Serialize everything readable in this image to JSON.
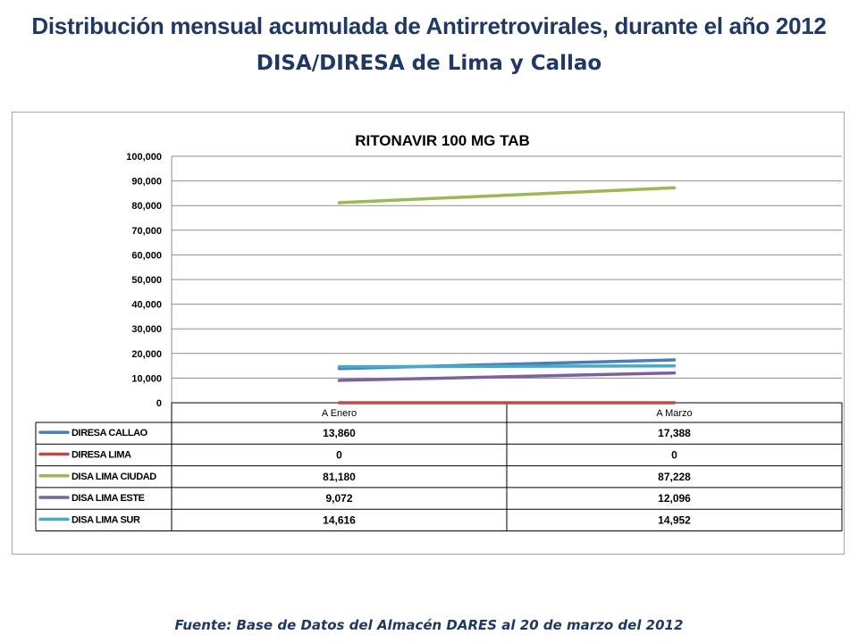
{
  "header": {
    "title": "Distribución mensual acumulada de Antirretrovirales, durante el año 2012",
    "subtitle": "DISA/DIRESA de Lima y Callao"
  },
  "footer": {
    "source": "Fuente: Base de Datos del Almacén DARES al 20 de marzo del 2012"
  },
  "chart_data": {
    "type": "line",
    "title": "RITONAVIR 100 MG TAB",
    "categories": [
      "A Enero",
      "A Marzo"
    ],
    "ylim": [
      0,
      100000
    ],
    "yticks": [
      0,
      10000,
      20000,
      30000,
      40000,
      50000,
      60000,
      70000,
      80000,
      90000,
      100000
    ],
    "ytick_labels": [
      "0",
      "10,000",
      "20,000",
      "30,000",
      "40,000",
      "50,000",
      "60,000",
      "70,000",
      "80,000",
      "90,000",
      "100,000"
    ],
    "grid": true,
    "legend_placement": "data table below plot",
    "series": [
      {
        "name": "DIRESA CALLAO",
        "values": [
          13860,
          17388
        ],
        "labels": [
          "13,860",
          "17,388"
        ],
        "color": "#4a7ebb"
      },
      {
        "name": "DIRESA LIMA",
        "values": [
          0,
          0
        ],
        "labels": [
          "0",
          "0"
        ],
        "color": "#be4b48"
      },
      {
        "name": "DISA LIMA CIUDAD",
        "values": [
          81180,
          87228
        ],
        "labels": [
          "81,180",
          "87,228"
        ],
        "color": "#98b954"
      },
      {
        "name": "DISA LIMA ESTE",
        "values": [
          9072,
          12096
        ],
        "labels": [
          "9,072",
          "12,096"
        ],
        "color": "#7d60a0"
      },
      {
        "name": "DISA LIMA SUR",
        "values": [
          14616,
          14952
        ],
        "labels": [
          "14,616",
          "14,952"
        ],
        "color": "#46aac5"
      }
    ]
  }
}
